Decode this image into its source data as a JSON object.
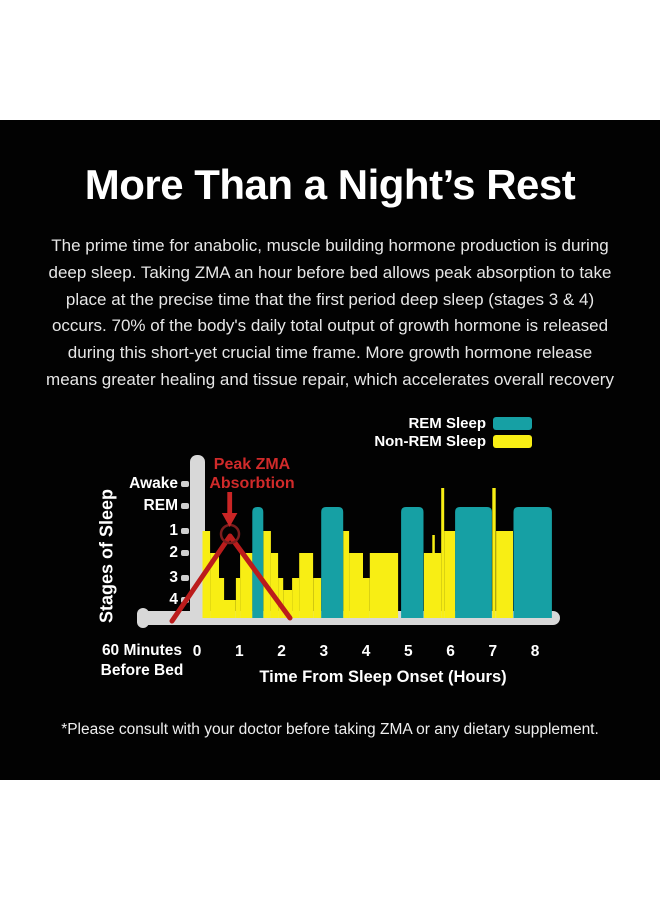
{
  "page": {
    "title": "More Than a Night’s Rest",
    "intro_lines": [
      "The prime time for anabolic, muscle building hormone production is during",
      "deep sleep. Taking ZMA an hour before bed allows peak absorption to take",
      "place at the precise time that the first period deep sleep (stages 3 & 4)",
      "occurs. 70% of the body's daily total output of growth hormone is released",
      "during this short-yet crucial time frame. More growth hormone release",
      "means greater healing and tissue repair, which accelerates overall recovery"
    ],
    "disclaimer": "*Please consult with your doctor before taking ZMA or any dietary supplement."
  },
  "chart_data": {
    "type": "area",
    "subtype": "sleep-hypnogram",
    "xlabel": "Time From Sleep Onset (Hours)",
    "ylabel": "Stages of Sleep",
    "x_prefix_label": [
      "60 Minutes",
      "Before Bed"
    ],
    "x_ticks": [
      "0",
      "1",
      "2",
      "3",
      "4",
      "5",
      "6",
      "7",
      "8"
    ],
    "xlim": [
      0,
      8.5
    ],
    "y_tick_labels": [
      "Awake",
      "REM",
      "1",
      "2",
      "3",
      "4"
    ],
    "legend_position": "top-right",
    "legend": [
      {
        "label": "REM Sleep",
        "color": "#16a0a4"
      },
      {
        "label": "Non-REM Sleep",
        "color": "#f8ee14"
      }
    ],
    "annotation": {
      "text_lines": [
        "Peak ZMA",
        "Absorbtion"
      ],
      "color": "#d02a2a",
      "peak_hour": 0.78,
      "peak_stage": "1"
    },
    "non_rem_color": "#f8ee14",
    "rem_color": "#16a0a4",
    "axis_color": "#d8d8d8",
    "non_rem_segments": [
      {
        "from_hr": 0.13,
        "to_hr": 0.31,
        "stage": "1"
      },
      {
        "from_hr": 0.31,
        "to_hr": 0.52,
        "stage": "2"
      },
      {
        "from_hr": 0.52,
        "to_hr": 0.64,
        "stage": "3"
      },
      {
        "from_hr": 0.64,
        "to_hr": 0.92,
        "stage": "4"
      },
      {
        "from_hr": 0.92,
        "to_hr": 1.02,
        "stage": "3"
      },
      {
        "from_hr": 1.02,
        "to_hr": 1.31,
        "stage": "2"
      },
      {
        "from_hr": 1.57,
        "to_hr": 1.75,
        "stage": "1"
      },
      {
        "from_hr": 1.75,
        "to_hr": 1.92,
        "stage": "2"
      },
      {
        "from_hr": 1.92,
        "to_hr": 2.04,
        "stage": "3"
      },
      {
        "from_hr": 2.04,
        "to_hr": 2.25,
        "stage": "3-4"
      },
      {
        "from_hr": 2.25,
        "to_hr": 2.42,
        "stage": "3"
      },
      {
        "from_hr": 2.42,
        "to_hr": 2.75,
        "stage": "2"
      },
      {
        "from_hr": 2.75,
        "to_hr": 2.94,
        "stage": "3"
      },
      {
        "from_hr": 3.46,
        "to_hr": 3.6,
        "stage": "1"
      },
      {
        "from_hr": 3.6,
        "to_hr": 3.93,
        "stage": "2"
      },
      {
        "from_hr": 3.93,
        "to_hr": 4.09,
        "stage": "3"
      },
      {
        "from_hr": 4.09,
        "to_hr": 4.76,
        "stage": "2"
      },
      {
        "from_hr": 5.37,
        "to_hr": 5.78,
        "stage": "2"
      },
      {
        "from_hr": 5.85,
        "to_hr": 6.11,
        "stage": "1"
      },
      {
        "from_hr": 7.08,
        "to_hr": 7.48,
        "stage": "1"
      }
    ],
    "rem_periods": [
      {
        "from_hr": 1.31,
        "to_hr": 1.57
      },
      {
        "from_hr": 2.94,
        "to_hr": 3.46
      },
      {
        "from_hr": 4.83,
        "to_hr": 5.36
      },
      {
        "from_hr": 6.11,
        "to_hr": 6.98
      },
      {
        "from_hr": 7.49,
        "to_hr": 8.4
      }
    ],
    "arousal_spikes": [
      {
        "from_hr": 5.57,
        "to_hr": 5.63,
        "stage": "1"
      },
      {
        "from_hr": 5.78,
        "to_hr": 5.85,
        "stage": "Awake"
      },
      {
        "from_hr": 6.99,
        "to_hr": 7.07,
        "stage": "Awake"
      }
    ]
  }
}
